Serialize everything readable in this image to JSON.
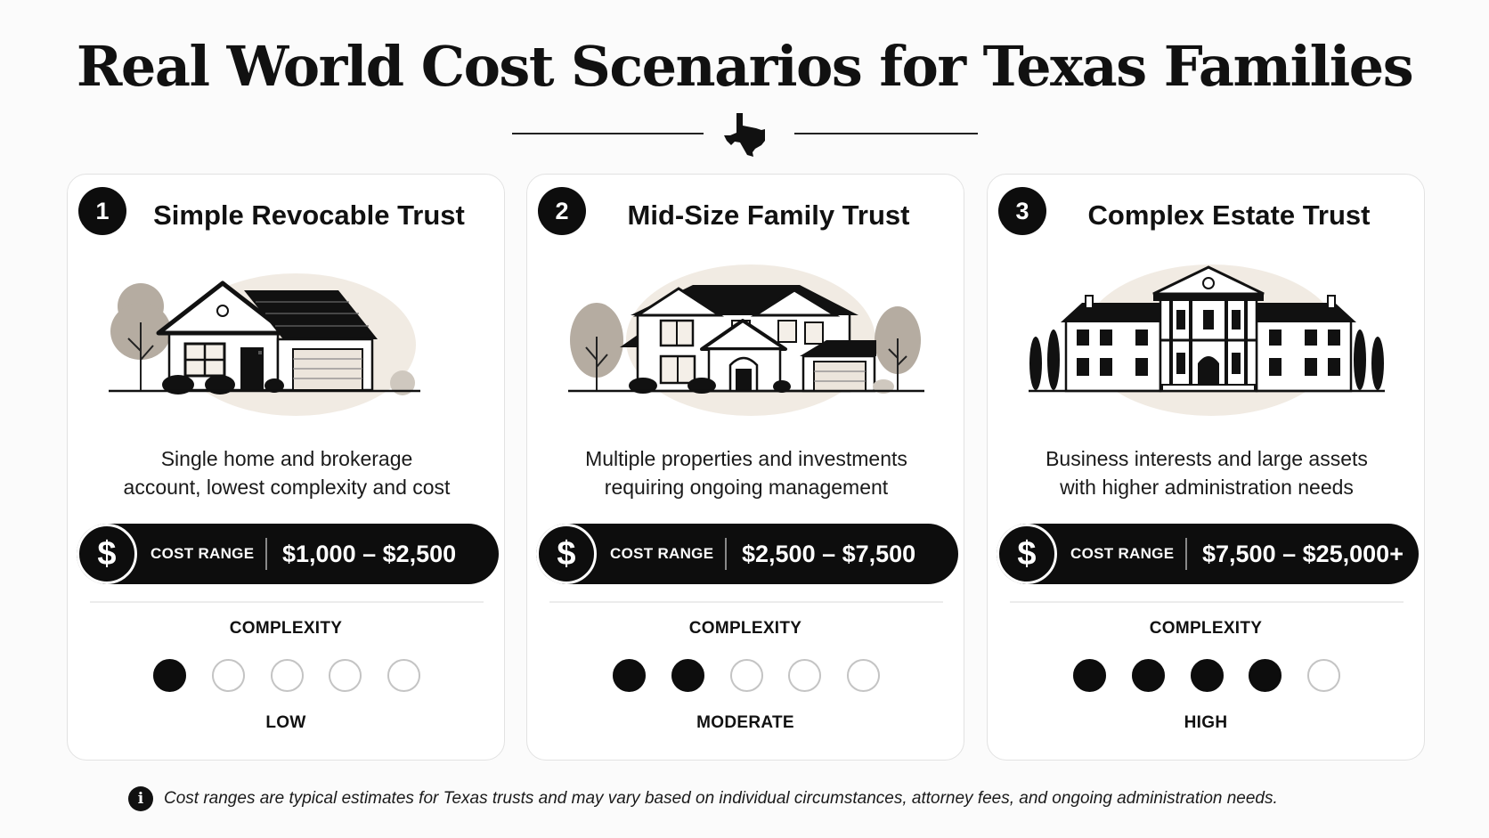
{
  "page": {
    "title": "Real World Cost Scenarios for Texas Families",
    "emblem_icon": "texas-state-icon"
  },
  "cards": [
    {
      "number": "1",
      "title": "Simple Revocable Trust",
      "illustration": "single-family-house-icon",
      "description_lines": [
        "Single home and brokerage",
        "account, lowest complexity and cost"
      ],
      "cost_icon": "dollar-icon",
      "cost_label": "COST RANGE",
      "cost_value": "$1,000 – $2,500",
      "complexity_heading": "COMPLEXITY",
      "complexity_score": 1,
      "complexity_max": 5,
      "complexity_level": "LOW"
    },
    {
      "number": "2",
      "title": "Mid-Size Family Trust",
      "illustration": "two-story-house-icon",
      "description_lines": [
        "Multiple properties and investments",
        "requiring ongoing management"
      ],
      "cost_icon": "dollar-icon",
      "cost_label": "COST RANGE",
      "cost_value": "$2,500 – $7,500",
      "complexity_heading": "COMPLEXITY",
      "complexity_score": 2,
      "complexity_max": 5,
      "complexity_level": "MODERATE"
    },
    {
      "number": "3",
      "title": "Complex Estate Trust",
      "illustration": "mansion-icon",
      "description_lines": [
        "Business interests and large assets",
        "with higher administration needs"
      ],
      "cost_icon": "dollar-icon",
      "cost_label": "COST RANGE",
      "cost_value": "$7,500 – $25,000+",
      "complexity_heading": "COMPLEXITY",
      "complexity_score": 4,
      "complexity_max": 5,
      "complexity_level": "HIGH"
    }
  ],
  "footnote": {
    "icon": "info-icon",
    "text": "Cost ranges are typical estimates for Texas trusts and may vary based on individual circumstances, attorney fees, and ongoing administration needs."
  },
  "colors": {
    "background": "#fbfbfb",
    "ink": "#0d0d0d",
    "card": "#ffffff",
    "illustration_tone": "#f1ebe3"
  }
}
